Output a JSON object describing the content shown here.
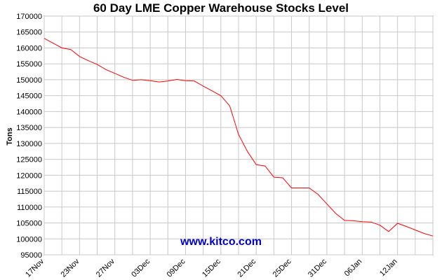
{
  "chart_data": {
    "type": "line",
    "title": "60 Day LME Copper Warehouse Stocks Level",
    "xlabel": "",
    "ylabel": "Tons",
    "ylim": [
      95000,
      170000
    ],
    "yticks": [
      95000,
      100000,
      105000,
      110000,
      115000,
      120000,
      125000,
      130000,
      135000,
      140000,
      145000,
      150000,
      155000,
      160000,
      165000,
      170000
    ],
    "x_tick_labels": [
      "17Nov",
      "23Nov",
      "27Nov",
      "03Dec",
      "09Dec",
      "15Dec",
      "21Dec",
      "25Dec",
      "31Dec",
      "06Jan",
      "12Jan"
    ],
    "x_tick_index": [
      0,
      4,
      8,
      12,
      16,
      20,
      24,
      28,
      32,
      36,
      40
    ],
    "grid": true,
    "line_color": "#ff0000",
    "series": [
      {
        "values": [
          163000,
          161500,
          160000,
          159500,
          157300,
          156000,
          154800,
          153200,
          152000,
          150800,
          149800,
          150000,
          149700,
          149300,
          149600,
          150100,
          149700,
          149600,
          148000,
          146500,
          145000,
          141800,
          132800,
          127500,
          123300,
          122900,
          119400,
          119200,
          116000,
          116000,
          116000,
          114000,
          111000,
          108000,
          105800,
          105700,
          105400,
          105300,
          104300,
          102300,
          104900,
          103900,
          102800,
          101700,
          100900
        ]
      }
    ]
  },
  "watermark": {
    "text": "www.kitco.com",
    "color": "#0000cc"
  }
}
